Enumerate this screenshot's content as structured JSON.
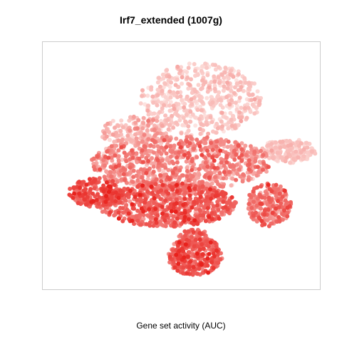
{
  "chart_data": {
    "type": "scatter",
    "title": "Irf7_extended (1007g)",
    "xlabel": "Gene set activity (AUC)",
    "ylabel": "",
    "axes_visible": false,
    "grid": false,
    "legend": "none",
    "xlim": [
      0,
      100
    ],
    "ylim": [
      0,
      100
    ],
    "color_scale": {
      "low": "#fde3e0",
      "high": "#e8211c"
    },
    "regions": [
      {
        "name": "top-lobe",
        "cx": 57,
        "cy": 77,
        "rx": 22,
        "ry": 15,
        "n": 520,
        "activity_mean": 0.12,
        "activity_sd": 0.08
      },
      {
        "name": "upper-left-arm",
        "cx": 33,
        "cy": 64,
        "rx": 13,
        "ry": 6,
        "n": 180,
        "activity_mean": 0.22,
        "activity_sd": 0.12
      },
      {
        "name": "mid-body",
        "cx": 50,
        "cy": 51,
        "rx": 33,
        "ry": 11,
        "n": 900,
        "activity_mean": 0.42,
        "activity_sd": 0.16
      },
      {
        "name": "lower-body",
        "cx": 45,
        "cy": 34,
        "rx": 25,
        "ry": 9,
        "n": 700,
        "activity_mean": 0.62,
        "activity_sd": 0.16
      },
      {
        "name": "lower-left-edge",
        "cx": 19,
        "cy": 39,
        "rx": 10,
        "ry": 6,
        "n": 220,
        "activity_mean": 0.72,
        "activity_sd": 0.14
      },
      {
        "name": "right-wing",
        "cx": 89,
        "cy": 56,
        "rx": 10,
        "ry": 5,
        "n": 200,
        "activity_mean": 0.14,
        "activity_sd": 0.08
      },
      {
        "name": "right-lower-lobe",
        "cx": 82,
        "cy": 34,
        "rx": 8,
        "ry": 9,
        "n": 240,
        "activity_mean": 0.5,
        "activity_sd": 0.18
      },
      {
        "name": "bottom-lobe",
        "cx": 55,
        "cy": 13,
        "rx": 10,
        "ry": 8,
        "n": 300,
        "activity_mean": 0.68,
        "activity_sd": 0.16
      },
      {
        "name": "neck",
        "cx": 55,
        "cy": 20,
        "rx": 6,
        "ry": 4,
        "n": 80,
        "activity_mean": 0.55,
        "activity_sd": 0.15
      }
    ]
  }
}
